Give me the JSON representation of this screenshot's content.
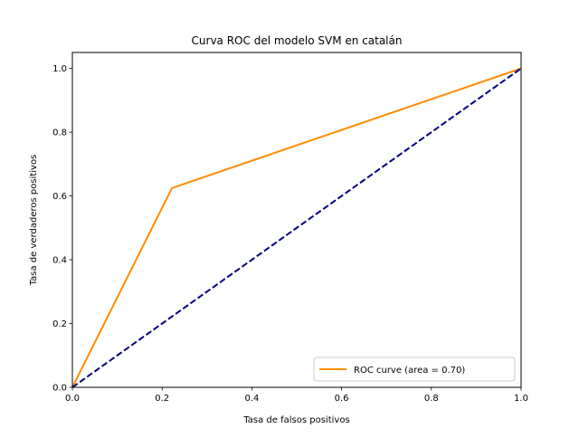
{
  "chart_data": {
    "type": "line",
    "title": "Curva ROC del modelo SVM en catalán",
    "xlabel": "Tasa de falsos positivos",
    "ylabel": "Tasa de verdaderos positivos",
    "xlim": [
      0.0,
      1.0
    ],
    "ylim": [
      0.0,
      1.05
    ],
    "x_ticks": [
      "0.0",
      "0.2",
      "0.4",
      "0.6",
      "0.8",
      "1.0"
    ],
    "y_ticks": [
      "0.0",
      "0.2",
      "0.4",
      "0.6",
      "0.8",
      "1.0"
    ],
    "grid": false,
    "legend_position": "lower-right",
    "series": [
      {
        "name": "ROC curve (area = 0.70)",
        "color": "#ff8c00",
        "line_style": "solid",
        "x": [
          0.0,
          0.222,
          1.0
        ],
        "y": [
          0.0,
          0.625,
          1.0
        ]
      },
      {
        "color": "#000080",
        "line_style": "dashed",
        "x": [
          0.0,
          1.0
        ],
        "y": [
          0.0,
          1.0
        ]
      }
    ]
  }
}
